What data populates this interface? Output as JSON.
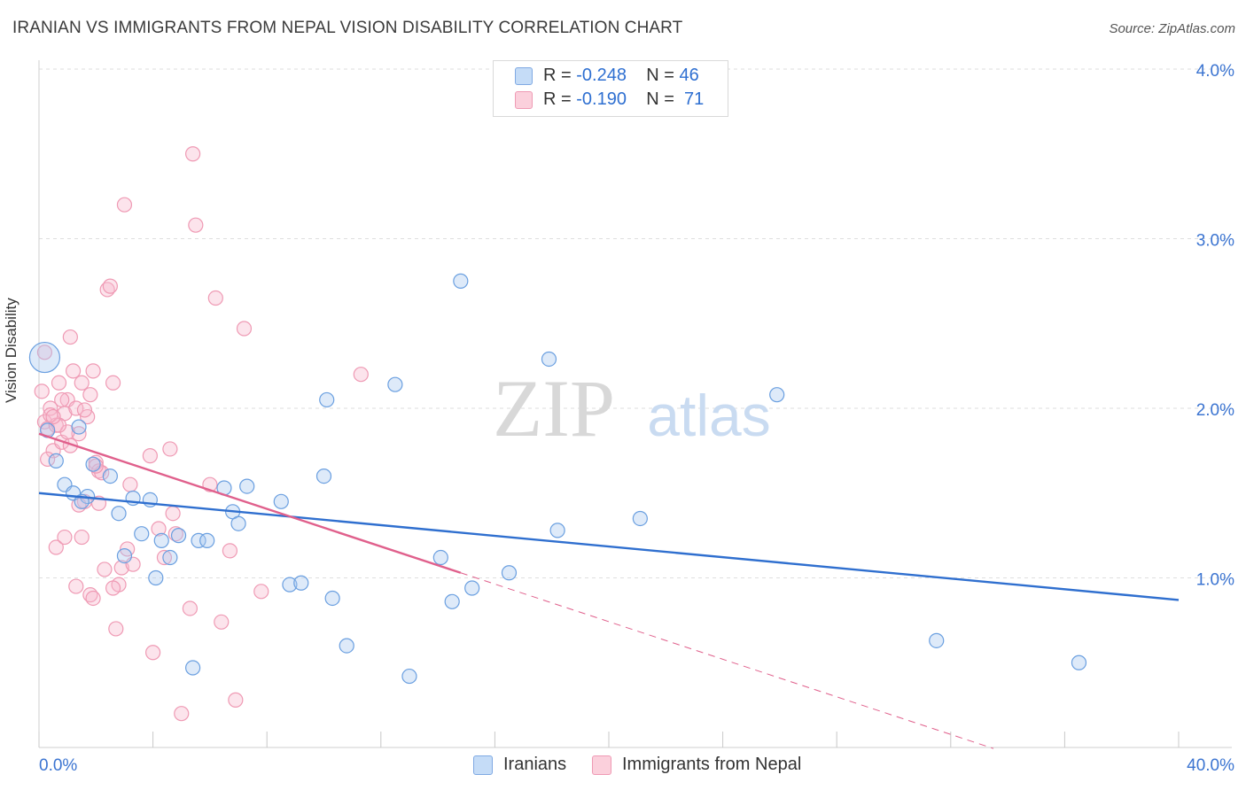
{
  "title": "IRANIAN VS IMMIGRANTS FROM NEPAL VISION DISABILITY CORRELATION CHART",
  "source": "Source: ZipAtlas.com",
  "watermark": {
    "zip": "ZIP",
    "atlas": "atlas"
  },
  "legend": {
    "rows": [
      {
        "r_label": "R =",
        "r_value": "-0.248",
        "n_label": "N =",
        "n_value": "46",
        "color": "#a8c8f0"
      },
      {
        "r_label": "R =",
        "r_value": "-0.190",
        "n_label": "N =",
        "n_value": "71",
        "color": "#f7b9cc"
      }
    ]
  },
  "bottom_legend": [
    "Iranians",
    "Immigrants from Nepal"
  ],
  "chart_data": {
    "type": "scatter",
    "title": "IRANIAN VS IMMIGRANTS FROM NEPAL VISION DISABILITY CORRELATION CHART",
    "xlabel": "",
    "ylabel": "Vision Disability",
    "xlim": [
      0,
      40
    ],
    "ylim": [
      0,
      4.2
    ],
    "x_tick_labels": [
      "0.0%",
      "40.0%"
    ],
    "y_tick_labels": [
      "1.0%",
      "2.0%",
      "3.0%",
      "4.0%"
    ],
    "y_ticks": [
      1,
      2,
      3,
      4
    ],
    "grid": true,
    "legend_position": "top-center",
    "colors": {
      "iranians": "#6a9fe0",
      "nepal": "#ee8fab",
      "iranians_line": "#2f6fcf",
      "nepal_line": "#e0608c"
    },
    "series": [
      {
        "name": "Iranians",
        "points": [
          [
            0.2,
            2.3
          ],
          [
            0.3,
            1.87
          ],
          [
            0.6,
            1.69
          ],
          [
            0.9,
            1.55
          ],
          [
            1.2,
            1.5
          ],
          [
            1.4,
            1.89
          ],
          [
            1.7,
            1.48
          ],
          [
            1.9,
            1.67
          ],
          [
            2.5,
            1.6
          ],
          [
            2.8,
            1.38
          ],
          [
            3.0,
            1.13
          ],
          [
            3.3,
            1.47
          ],
          [
            3.6,
            1.26
          ],
          [
            3.9,
            1.46
          ],
          [
            4.1,
            1.0
          ],
          [
            4.3,
            1.22
          ],
          [
            4.6,
            1.12
          ],
          [
            4.9,
            1.25
          ],
          [
            5.4,
            0.47
          ],
          [
            5.6,
            1.22
          ],
          [
            5.9,
            1.22
          ],
          [
            6.5,
            1.53
          ],
          [
            6.8,
            1.39
          ],
          [
            7.0,
            1.32
          ],
          [
            7.3,
            1.54
          ],
          [
            8.5,
            1.45
          ],
          [
            8.8,
            0.96
          ],
          [
            9.2,
            0.97
          ],
          [
            10.1,
            2.05
          ],
          [
            10.0,
            1.6
          ],
          [
            10.3,
            0.88
          ],
          [
            10.8,
            0.6
          ],
          [
            12.5,
            2.14
          ],
          [
            13.0,
            0.42
          ],
          [
            14.1,
            1.12
          ],
          [
            14.5,
            0.86
          ],
          [
            14.8,
            2.75
          ],
          [
            15.2,
            0.94
          ],
          [
            16.5,
            1.03
          ],
          [
            17.9,
            2.29
          ],
          [
            18.2,
            1.28
          ],
          [
            21.1,
            1.35
          ],
          [
            25.9,
            2.08
          ],
          [
            31.5,
            0.63
          ],
          [
            36.5,
            0.5
          ],
          [
            1.5,
            1.45
          ]
        ]
      },
      {
        "name": "Immigrants from Nepal",
        "points": [
          [
            0.1,
            2.1
          ],
          [
            0.2,
            1.92
          ],
          [
            0.3,
            1.88
          ],
          [
            0.4,
            2.0
          ],
          [
            0.5,
            1.75
          ],
          [
            0.6,
            1.9
          ],
          [
            0.7,
            2.15
          ],
          [
            0.8,
            1.8
          ],
          [
            0.9,
            1.97
          ],
          [
            1.0,
            2.05
          ],
          [
            1.1,
            1.78
          ],
          [
            1.2,
            2.22
          ],
          [
            1.3,
            2.0
          ],
          [
            1.4,
            1.85
          ],
          [
            1.5,
            2.15
          ],
          [
            1.6,
            1.45
          ],
          [
            1.7,
            1.95
          ],
          [
            1.8,
            2.08
          ],
          [
            1.9,
            2.22
          ],
          [
            2.0,
            1.68
          ],
          [
            2.1,
            1.63
          ],
          [
            2.2,
            1.62
          ],
          [
            2.3,
            1.05
          ],
          [
            2.4,
            2.7
          ],
          [
            2.5,
            2.72
          ],
          [
            2.6,
            2.15
          ],
          [
            2.7,
            0.7
          ],
          [
            2.8,
            0.96
          ],
          [
            2.9,
            1.06
          ],
          [
            3.0,
            3.2
          ],
          [
            3.1,
            1.17
          ],
          [
            3.2,
            1.55
          ],
          [
            3.3,
            1.08
          ],
          [
            3.9,
            1.72
          ],
          [
            4.0,
            0.56
          ],
          [
            4.2,
            1.29
          ],
          [
            4.4,
            1.12
          ],
          [
            4.6,
            1.76
          ],
          [
            4.7,
            1.38
          ],
          [
            4.8,
            1.26
          ],
          [
            5.0,
            0.2
          ],
          [
            5.3,
            0.82
          ],
          [
            5.4,
            3.5
          ],
          [
            5.5,
            3.08
          ],
          [
            6.0,
            1.55
          ],
          [
            6.2,
            2.65
          ],
          [
            6.4,
            0.74
          ],
          [
            6.7,
            1.16
          ],
          [
            6.9,
            0.28
          ],
          [
            7.2,
            2.47
          ],
          [
            7.8,
            0.92
          ],
          [
            11.3,
            2.2
          ],
          [
            1.5,
            1.24
          ],
          [
            1.8,
            0.9
          ],
          [
            2.1,
            1.44
          ],
          [
            0.3,
            1.7
          ],
          [
            0.6,
            1.18
          ],
          [
            1.0,
            1.86
          ],
          [
            1.3,
            0.95
          ],
          [
            1.9,
            0.88
          ],
          [
            0.9,
            1.24
          ],
          [
            2.6,
            0.94
          ],
          [
            0.4,
            1.96
          ],
          [
            1.1,
            2.42
          ],
          [
            0.7,
            1.9
          ],
          [
            1.4,
            1.43
          ],
          [
            0.5,
            1.95
          ],
          [
            2.0,
            1.66
          ],
          [
            0.2,
            2.33
          ],
          [
            0.8,
            2.05
          ],
          [
            1.6,
            1.99
          ]
        ]
      }
    ],
    "trend_lines": [
      {
        "name": "Iranians",
        "x": [
          0,
          40
        ],
        "y": [
          1.5,
          0.87
        ]
      },
      {
        "name": "Immigrants from Nepal",
        "x": [
          0,
          14.8
        ],
        "y": [
          1.85,
          1.03
        ],
        "dashed_extension_to_x": 33.5
      }
    ]
  }
}
